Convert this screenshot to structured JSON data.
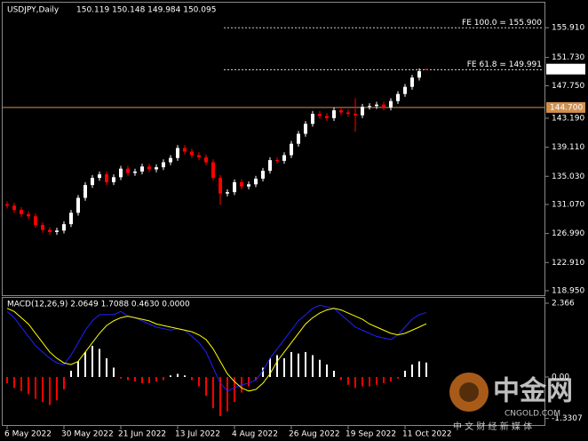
{
  "chart_data": [
    {
      "type": "candlestick",
      "title": "USDJPY,Daily",
      "ohlc_text": "150.119 150.148 149.984 150.095",
      "categories": [
        "6 May 2022",
        null,
        null,
        null,
        null,
        null,
        null,
        null,
        "30 May 2022",
        null,
        null,
        null,
        null,
        null,
        null,
        null,
        "21 Jun 2022",
        null,
        null,
        null,
        null,
        null,
        null,
        null,
        "13 Jul 2022",
        null,
        null,
        null,
        null,
        null,
        null,
        null,
        "4 Aug 2022",
        null,
        null,
        null,
        null,
        null,
        null,
        null,
        "26 Aug 2022",
        null,
        null,
        null,
        null,
        null,
        null,
        null,
        "19 Sep 2022",
        null,
        null,
        null,
        null,
        null,
        null,
        null,
        "11 Oct 2022",
        null,
        null,
        null
      ],
      "open": [
        131.1,
        130.9,
        130.3,
        129.7,
        129.4,
        128.2,
        127.5,
        127.2,
        127.4,
        128.3,
        129.9,
        132.0,
        133.8,
        134.8,
        135.3,
        134.2,
        134.9,
        136.1,
        135.5,
        135.7,
        136.4,
        136.0,
        136.3,
        137.0,
        137.6,
        139.0,
        138.5,
        138.0,
        137.7,
        137.0,
        134.8,
        132.6,
        132.8,
        134.2,
        133.6,
        133.9,
        134.7,
        135.8,
        137.3,
        137.2,
        138.0,
        139.6,
        141.0,
        142.4,
        143.8,
        143.5,
        143.2,
        144.3,
        144.0,
        143.8,
        143.6,
        144.8,
        144.9,
        145.1,
        144.7,
        145.6,
        146.6,
        147.6,
        148.9,
        150.119
      ],
      "high": [
        131.5,
        131.3,
        130.7,
        130.1,
        129.8,
        128.6,
        127.9,
        127.8,
        128.7,
        130.3,
        132.4,
        134.2,
        135.2,
        135.7,
        135.7,
        135.3,
        136.5,
        136.5,
        136.1,
        136.8,
        136.8,
        136.7,
        137.4,
        138.0,
        139.4,
        139.4,
        138.9,
        138.4,
        138.1,
        137.4,
        135.2,
        133.2,
        134.6,
        134.6,
        134.3,
        135.1,
        136.2,
        137.7,
        137.7,
        138.4,
        140.0,
        141.4,
        142.8,
        144.2,
        144.2,
        143.9,
        144.7,
        144.7,
        144.4,
        146.0,
        145.2,
        145.3,
        145.5,
        145.5,
        146.0,
        147.0,
        148.0,
        149.3,
        150.2,
        150.148
      ],
      "low": [
        130.5,
        129.9,
        129.3,
        129.0,
        127.8,
        127.1,
        126.8,
        126.8,
        127.0,
        127.9,
        129.5,
        131.6,
        133.4,
        134.4,
        133.8,
        133.8,
        134.5,
        135.1,
        135.1,
        135.3,
        135.6,
        135.6,
        135.9,
        136.6,
        137.2,
        138.1,
        137.6,
        137.3,
        136.6,
        134.4,
        131.0,
        132.2,
        132.4,
        133.2,
        133.2,
        133.5,
        134.3,
        135.4,
        136.8,
        136.8,
        137.6,
        139.2,
        140.6,
        142.0,
        143.1,
        142.8,
        142.8,
        143.6,
        143.4,
        141.3,
        143.2,
        144.4,
        144.5,
        144.3,
        144.3,
        145.2,
        146.2,
        147.2,
        148.5,
        149.984
      ],
      "close": [
        130.9,
        130.3,
        129.7,
        129.4,
        128.2,
        127.5,
        127.2,
        127.4,
        128.3,
        129.9,
        132.0,
        133.8,
        134.8,
        135.3,
        134.2,
        134.9,
        136.1,
        135.5,
        135.7,
        136.4,
        136.0,
        136.3,
        137.0,
        137.6,
        139.0,
        138.5,
        138.0,
        137.7,
        137.0,
        134.8,
        132.6,
        132.8,
        134.2,
        133.6,
        133.9,
        134.7,
        135.8,
        137.3,
        137.2,
        138.0,
        139.6,
        141.0,
        142.4,
        143.8,
        143.5,
        143.2,
        144.3,
        144.0,
        143.8,
        143.6,
        144.8,
        144.9,
        145.1,
        144.7,
        145.6,
        146.6,
        147.6,
        148.9,
        149.8,
        150.095
      ],
      "up_color": "#ffffff",
      "down_color": "#ff0000",
      "ylim": [
        118.32,
        159.43
      ],
      "yticks": [
        {
          "value": 155.91,
          "label": "155.910"
        },
        {
          "value": 151.73,
          "label": "151.730"
        },
        {
          "value": 147.75,
          "label": "147.750"
        },
        {
          "value": 143.19,
          "label": "143.190"
        },
        {
          "value": 139.11,
          "label": "139.110"
        },
        {
          "value": 135.03,
          "label": "135.030"
        },
        {
          "value": 131.07,
          "label": "131.070"
        },
        {
          "value": 126.99,
          "label": "126.990"
        },
        {
          "value": 122.91,
          "label": "122.910"
        },
        {
          "value": 118.95,
          "label": "118.950"
        }
      ],
      "last_price": {
        "value": 150.095,
        "label": "150.095"
      },
      "hlines": [
        {
          "value": 144.7,
          "label": "144.700",
          "color": "#d09050"
        }
      ],
      "fib_levels": [
        {
          "value": 155.9,
          "label": "FE 100.0 = 155.900"
        },
        {
          "value": 149.991,
          "label": "FE 61.8 = 149.991"
        }
      ]
    },
    {
      "type": "macd",
      "title": "MACD(12,26,9) 2.0649 1.7088 0.4630 0.0000",
      "histogram": {
        "up_color": "#ffffff",
        "down_color": "#ff0000",
        "values": [
          -0.2,
          -0.35,
          -0.45,
          -0.55,
          -0.7,
          -0.8,
          -0.9,
          -0.75,
          -0.4,
          0.2,
          0.5,
          0.8,
          1.0,
          0.9,
          0.6,
          0.3,
          -0.05,
          -0.1,
          -0.15,
          -0.2,
          -0.2,
          -0.15,
          -0.1,
          0.05,
          0.1,
          0.05,
          -0.1,
          -0.3,
          -0.6,
          -1.0,
          -1.25,
          -1.1,
          -0.8,
          -0.5,
          -0.3,
          -0.1,
          0.3,
          0.6,
          0.7,
          0.6,
          0.8,
          0.75,
          0.8,
          0.7,
          0.55,
          0.4,
          0.2,
          -0.1,
          -0.25,
          -0.35,
          -0.3,
          -0.3,
          -0.25,
          -0.2,
          -0.15,
          -0.05,
          0.2,
          0.4,
          0.5,
          0.463
        ]
      },
      "series": [
        {
          "color": "#2020ff",
          "values": [
            2.1,
            1.9,
            1.6,
            1.3,
            1.0,
            0.8,
            0.6,
            0.45,
            0.4,
            0.7,
            1.1,
            1.5,
            1.8,
            2.0,
            2.0,
            2.0,
            2.1,
            1.95,
            1.9,
            1.8,
            1.7,
            1.6,
            1.55,
            1.5,
            1.55,
            1.5,
            1.3,
            1.1,
            0.8,
            0.3,
            -0.2,
            -0.45,
            -0.35,
            -0.25,
            -0.2,
            -0.1,
            0.2,
            0.6,
            0.9,
            1.2,
            1.5,
            1.8,
            2.0,
            2.2,
            2.3,
            2.25,
            2.2,
            2.0,
            1.8,
            1.6,
            1.5,
            1.4,
            1.3,
            1.25,
            1.2,
            1.35,
            1.6,
            1.85,
            2.0,
            2.0649
          ]
        },
        {
          "color": "#ffff00",
          "values": [
            2.2,
            2.1,
            1.9,
            1.7,
            1.4,
            1.1,
            0.8,
            0.6,
            0.45,
            0.4,
            0.5,
            0.8,
            1.1,
            1.4,
            1.65,
            1.8,
            1.9,
            1.95,
            1.9,
            1.85,
            1.8,
            1.7,
            1.65,
            1.6,
            1.55,
            1.5,
            1.45,
            1.35,
            1.2,
            0.9,
            0.5,
            0.1,
            -0.15,
            -0.35,
            -0.45,
            -0.4,
            -0.2,
            0.1,
            0.5,
            0.8,
            1.1,
            1.4,
            1.7,
            1.9,
            2.05,
            2.15,
            2.2,
            2.15,
            2.05,
            1.95,
            1.85,
            1.7,
            1.6,
            1.5,
            1.4,
            1.35,
            1.4,
            1.5,
            1.6,
            1.7088
          ]
        }
      ],
      "ylim": [
        -1.539,
        2.537
      ],
      "yticks": [
        2.366,
        {
          "value": 0,
          "label": "0.00"
        },
        -1.3307
      ]
    }
  ],
  "watermark": {
    "name": "中金网",
    "site": "CNGOLD.COM",
    "slogan": "中 文 财 经 新 媒 体"
  }
}
